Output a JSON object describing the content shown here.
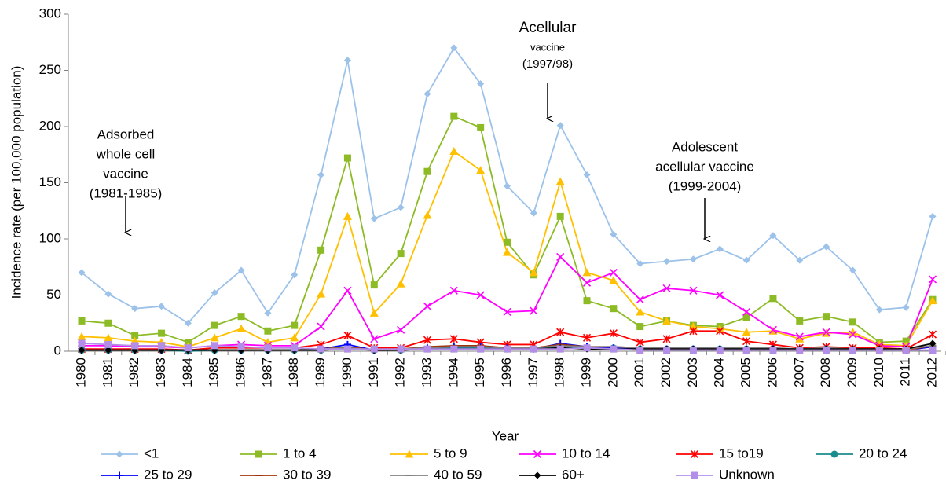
{
  "chart_data": {
    "type": "line",
    "y_label": "Incidence rate (per 100,000 population)",
    "x_label": "Year",
    "categories": [
      "1980",
      "1981",
      "1982",
      "1983",
      "1984",
      "1985",
      "1986",
      "1987",
      "1988",
      "1989",
      "1990",
      "1991",
      "1992",
      "1993",
      "1994",
      "1995",
      "1996",
      "1997",
      "1998",
      "1999",
      "2000",
      "2001",
      "2002",
      "2003",
      "2004",
      "2005",
      "2006",
      "2007",
      "2008",
      "2009",
      "2010",
      "2011",
      "2012"
    ],
    "ylim": [
      0,
      300
    ],
    "yticks": [
      0,
      50,
      100,
      150,
      200,
      250,
      300
    ],
    "grid": false,
    "legend": "bottom",
    "series": [
      {
        "name": "<1",
        "color": "#9cc2ea",
        "marker": "diamond",
        "values": [
          70,
          51,
          38,
          40,
          25,
          52,
          72,
          34,
          68,
          157,
          259,
          118,
          128,
          229,
          270,
          238,
          147,
          123,
          201,
          157,
          104,
          78,
          80,
          82,
          91,
          81,
          103,
          81,
          93,
          72,
          37,
          39,
          120
        ]
      },
      {
        "name": "1 to 4",
        "color": "#8dbb26",
        "marker": "square",
        "values": [
          27,
          25,
          14,
          16,
          8,
          23,
          31,
          18,
          23,
          90,
          172,
          59,
          87,
          160,
          209,
          199,
          97,
          68,
          120,
          45,
          38,
          22,
          27,
          23,
          22,
          30,
          47,
          27,
          31,
          26,
          8,
          9,
          46
        ]
      },
      {
        "name": "5 to 9",
        "color": "#ffc000",
        "marker": "triangle",
        "values": [
          13,
          12,
          9,
          8,
          4,
          12,
          20,
          8,
          12,
          51,
          120,
          34,
          60,
          121,
          178,
          161,
          88,
          70,
          151,
          70,
          63,
          35,
          27,
          22,
          20,
          17,
          18,
          11,
          16,
          17,
          6,
          5,
          45
        ]
      },
      {
        "name": "10 to 14",
        "color": "#ff00ff",
        "marker": "x",
        "values": [
          5,
          5,
          4,
          4,
          3,
          5,
          6,
          5,
          5,
          22,
          54,
          11,
          19,
          40,
          54,
          50,
          35,
          36,
          84,
          61,
          70,
          46,
          56,
          54,
          50,
          35,
          19,
          13,
          17,
          15,
          5,
          4,
          64
        ]
      },
      {
        "name": "15 to19",
        "color": "#ff0000",
        "marker": "star",
        "values": [
          2,
          2,
          2,
          2,
          1,
          3,
          3,
          3,
          3,
          6,
          14,
          3,
          3,
          10,
          11,
          8,
          6,
          6,
          17,
          12,
          16,
          8,
          11,
          18,
          18,
          9,
          6,
          3,
          4,
          3,
          3,
          2,
          15
        ]
      },
      {
        "name": "20 to 24",
        "color": "#1a8c8c",
        "marker": "circle",
        "values": [
          1,
          1,
          1,
          1,
          0,
          1,
          1,
          1,
          1,
          1,
          3,
          1,
          1,
          2,
          3,
          3,
          2,
          2,
          4,
          3,
          3,
          2,
          2,
          2,
          2,
          2,
          2,
          1,
          2,
          1,
          1,
          1,
          4
        ]
      },
      {
        "name": "25 to 29",
        "color": "#0000ff",
        "marker": "plus",
        "values": [
          1,
          1,
          1,
          1,
          1,
          1,
          1,
          1,
          1,
          2,
          6,
          1,
          2,
          3,
          4,
          4,
          3,
          2,
          7,
          4,
          3,
          2,
          2,
          2,
          2,
          2,
          2,
          1,
          2,
          1,
          1,
          1,
          4
        ]
      },
      {
        "name": "30 to 39",
        "color": "#a0320a",
        "marker": "dash",
        "values": [
          1,
          1,
          1,
          1,
          1,
          1,
          1,
          1,
          1,
          2,
          4,
          1,
          2,
          4,
          5,
          5,
          3,
          3,
          6,
          4,
          4,
          3,
          3,
          3,
          3,
          3,
          2,
          2,
          3,
          2,
          1,
          1,
          5
        ]
      },
      {
        "name": "40 to 59",
        "color": "#808080",
        "marker": "dash",
        "values": [
          1,
          1,
          1,
          1,
          1,
          1,
          1,
          1,
          1,
          2,
          3,
          1,
          2,
          3,
          4,
          4,
          3,
          3,
          5,
          4,
          4,
          3,
          3,
          3,
          3,
          3,
          3,
          2,
          3,
          2,
          2,
          2,
          5
        ]
      },
      {
        "name": "60+",
        "color": "#000000",
        "marker": "diamond",
        "values": [
          1,
          1,
          1,
          1,
          1,
          1,
          1,
          1,
          1,
          1,
          2,
          1,
          1,
          2,
          2,
          2,
          2,
          2,
          3,
          2,
          2,
          2,
          2,
          2,
          2,
          2,
          2,
          2,
          2,
          2,
          2,
          2,
          7
        ]
      },
      {
        "name": "Unknown",
        "color": "#b38ee8",
        "marker": "square",
        "values": [
          7,
          6,
          5,
          5,
          3,
          5,
          4,
          3,
          3,
          2,
          2,
          2,
          2,
          2,
          2,
          2,
          2,
          2,
          2,
          3,
          2,
          1,
          1,
          1,
          1,
          1,
          1,
          1,
          1,
          1,
          1,
          1,
          1
        ]
      }
    ],
    "annotations": [
      {
        "text": [
          "Adsorbed",
          "whole cell",
          "vaccine",
          "(1981-1985)"
        ]
      },
      {
        "text": [
          "Acellular",
          "vaccine",
          "(1997/98)"
        ]
      },
      {
        "text": [
          "Adolescent",
          "acellular vaccine",
          "(1999-2004)"
        ]
      }
    ]
  }
}
